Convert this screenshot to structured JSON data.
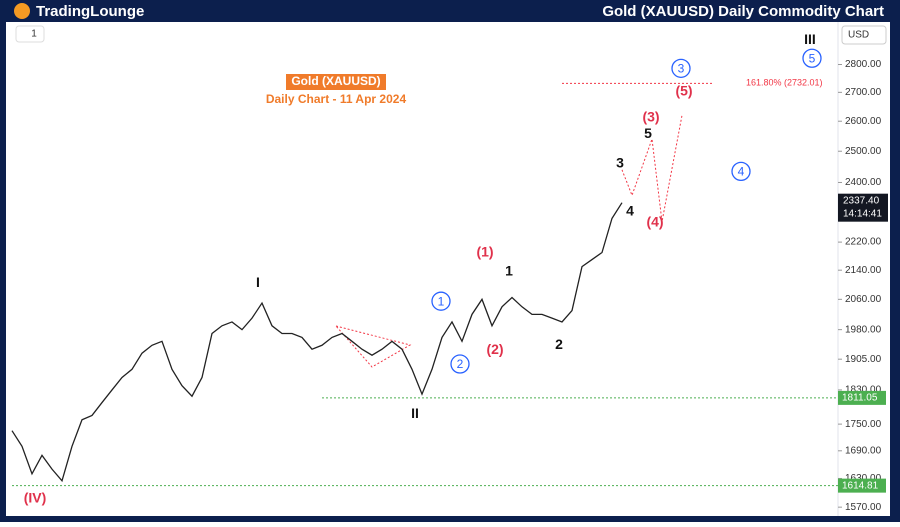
{
  "header": {
    "brand": "TradingLounge",
    "title": "Gold (XAUUSD) Daily Commodity Chart"
  },
  "toolbar": {
    "interval": "1",
    "currency": "USD"
  },
  "chart_data": {
    "type": "line",
    "title": "Gold (XAUUSD)",
    "subtitle": "Daily Chart - 11 Apr 2024",
    "log_scale": true,
    "grid": false,
    "color": "#222222",
    "values": [
      1735,
      1700,
      1640,
      1680,
      1650,
      1625,
      1700,
      1760,
      1770,
      1800,
      1830,
      1860,
      1880,
      1920,
      1940,
      1950,
      1880,
      1840,
      1815,
      1860,
      1970,
      1990,
      2000,
      1980,
      2010,
      2050,
      1990,
      1970,
      1970,
      1960,
      1930,
      1940,
      1960,
      1970,
      1950,
      1930,
      1915,
      1930,
      1950,
      1930,
      1880,
      1820,
      1880,
      1960,
      2000,
      1950,
      2020,
      2060,
      1990,
      2040,
      2065,
      2040,
      2020,
      2020,
      2010,
      2000,
      2030,
      2150,
      2170,
      2190,
      2290,
      2337.4
    ],
    "last_price_label": "2337.40",
    "countdown": "14:14:41",
    "projection": {
      "color": "#f23645",
      "x": [
        61,
        62,
        64,
        65,
        67
      ],
      "values": [
        2440,
        2360,
        2540,
        2280,
        2620
      ]
    },
    "ylim": [
      1554,
      2960
    ],
    "yticks": [
      {
        "value": 1570,
        "label": "1570.00"
      },
      {
        "value": 1630,
        "label": "1630.00"
      },
      {
        "value": 1690,
        "label": "1690.00"
      },
      {
        "value": 1750,
        "label": "1750.00"
      },
      {
        "value": 1830,
        "label": "1830.00"
      },
      {
        "value": 1905,
        "label": "1905.00"
      },
      {
        "value": 1980,
        "label": "1980.00"
      },
      {
        "value": 2060,
        "label": "2060.00"
      },
      {
        "value": 2140,
        "label": "2140.00"
      },
      {
        "value": 2220,
        "label": "2220.00"
      },
      {
        "value": 2400,
        "label": "2400.00"
      },
      {
        "value": 2500,
        "label": "2500.00"
      },
      {
        "value": 2600,
        "label": "2600.00"
      },
      {
        "value": 2700,
        "label": "2700.00"
      },
      {
        "value": 2800,
        "label": "2800.00"
      }
    ],
    "levels": [
      {
        "value": 2732.01,
        "label": "161.80% (2732.01)",
        "color": "#f23645",
        "from": 55,
        "to": 70
      },
      {
        "value": 1811.05,
        "label": "1811.05",
        "color": "#4caf50",
        "from": 31
      },
      {
        "value": 1614.81,
        "label": "1614.81",
        "color": "#4caf50",
        "from": 0
      }
    ],
    "annotations": [
      {
        "text": "(IV)",
        "x": 2.3,
        "y": 1589,
        "color": "#e0314b"
      },
      {
        "text": "I",
        "x": 24.6,
        "y": 2107,
        "color": "#111111"
      },
      {
        "text": "II",
        "x": 40.3,
        "y": 1775,
        "color": "#111111"
      },
      {
        "text": "(1)",
        "x": 47.3,
        "y": 2192,
        "color": "#e0314b"
      },
      {
        "text": "(2)",
        "x": 48.3,
        "y": 1930,
        "color": "#e0314b"
      },
      {
        "text": "1",
        "x": 49.7,
        "y": 2138,
        "color": "#111111"
      },
      {
        "text": "2",
        "x": 54.7,
        "y": 1943,
        "color": "#111111"
      },
      {
        "text": "3",
        "x": 60.8,
        "y": 2462,
        "color": "#111111"
      },
      {
        "text": "4",
        "x": 61.8,
        "y": 2312,
        "color": "#111111"
      },
      {
        "text": "5",
        "x": 63.6,
        "y": 2560,
        "color": "#111111"
      },
      {
        "text": "(3)",
        "x": 63.9,
        "y": 2615,
        "color": "#e0314b"
      },
      {
        "text": "(4)",
        "x": 64.3,
        "y": 2279,
        "color": "#e0314b"
      },
      {
        "text": "(5)",
        "x": 67.2,
        "y": 2706,
        "color": "#e0314b"
      },
      {
        "text": "III",
        "x": 79.8,
        "y": 2894,
        "color": "#111111"
      },
      {
        "text": "1",
        "x": 42.9,
        "y": 2055,
        "color": "#2962ff",
        "circled": true
      },
      {
        "text": "2",
        "x": 44.8,
        "y": 1893,
        "color": "#2962ff",
        "circled": true
      },
      {
        "text": "3",
        "x": 66.9,
        "y": 2786,
        "color": "#2962ff",
        "circled": true
      },
      {
        "text": "4",
        "x": 72.9,
        "y": 2435,
        "color": "#2962ff",
        "circled": true
      },
      {
        "text": "5",
        "x": 80.0,
        "y": 2823,
        "color": "#2962ff",
        "circled": true
      }
    ]
  }
}
